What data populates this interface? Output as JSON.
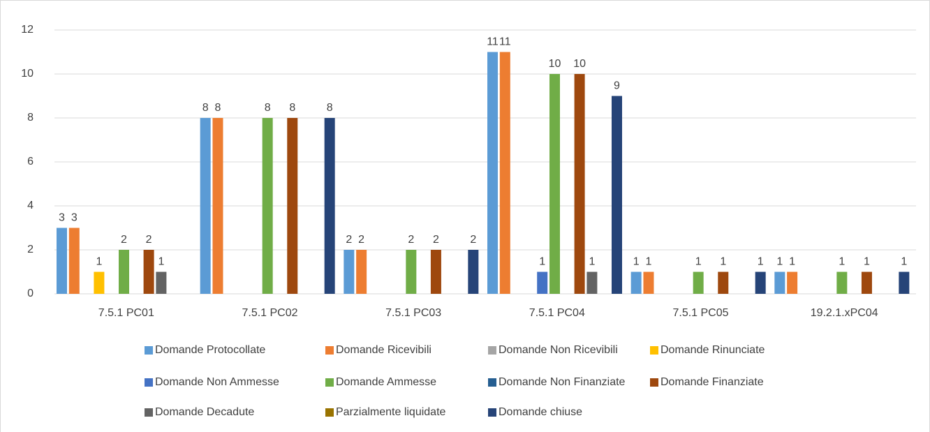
{
  "chart_data": {
    "type": "bar",
    "categories": [
      "7.5.1 PC01",
      "7.5.1 PC02",
      "7.5.1 PC03",
      "7.5.1 PC04",
      "7.5.1 PC05",
      "19.2.1.xPC04"
    ],
    "series": [
      {
        "name": "Domande Protocollate",
        "color": "#5b9bd5",
        "values": [
          3,
          8,
          2,
          11,
          1,
          1
        ]
      },
      {
        "name": "Domande Ricevibili",
        "color": "#ed7d31",
        "values": [
          3,
          8,
          2,
          11,
          1,
          1
        ]
      },
      {
        "name": "Domande Non Ricevibili",
        "color": "#a5a5a5",
        "values": [
          null,
          null,
          null,
          null,
          null,
          null
        ]
      },
      {
        "name": "Domande Rinunciate",
        "color": "#ffc000",
        "values": [
          1,
          null,
          null,
          null,
          null,
          null
        ]
      },
      {
        "name": "Domande Non Ammesse",
        "color": "#4472c4",
        "values": [
          null,
          null,
          null,
          1,
          null,
          null
        ]
      },
      {
        "name": "Domande Ammesse",
        "color": "#70ad47",
        "values": [
          2,
          8,
          2,
          10,
          1,
          1
        ]
      },
      {
        "name": "Domande Non Finanziate",
        "color": "#255e91",
        "values": [
          null,
          null,
          null,
          null,
          null,
          null
        ]
      },
      {
        "name": "Domande Finanziate",
        "color": "#9e480e",
        "values": [
          2,
          8,
          2,
          10,
          1,
          1
        ]
      },
      {
        "name": "Domande Decadute",
        "color": "#636363",
        "values": [
          1,
          null,
          null,
          1,
          null,
          null
        ]
      },
      {
        "name": "Parzialmente liquidate",
        "color": "#997300",
        "values": [
          null,
          null,
          null,
          null,
          null,
          null
        ]
      },
      {
        "name": "Domande chiuse",
        "color": "#264478",
        "values": [
          null,
          8,
          2,
          9,
          1,
          1
        ]
      }
    ],
    "ylim": [
      0,
      12
    ],
    "yticks": [
      0,
      2,
      4,
      6,
      8,
      10,
      12
    ],
    "grid": true,
    "legend": "bottom"
  }
}
